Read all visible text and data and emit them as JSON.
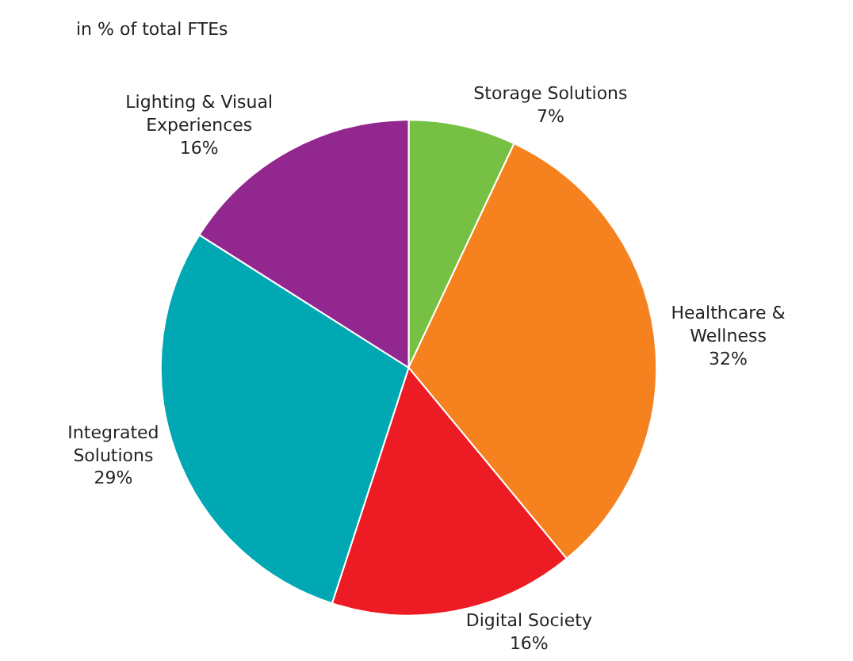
{
  "chart_data": {
    "type": "pie",
    "subtitle": "in % of total FTEs",
    "categories": [
      "Storage Solutions",
      "Healthcare & Wellness",
      "Digital Society",
      "Integrated Solutions",
      "Lighting & Visual Experiences"
    ],
    "values": [
      7,
      32,
      16,
      29,
      16
    ],
    "value_labels": [
      "7%",
      "32%",
      "16%",
      "29%",
      "16%"
    ],
    "colors": [
      "#76c043",
      "#f5821f",
      "#ed1c24",
      "#00a8b4",
      "#92278f"
    ],
    "legend": false
  }
}
